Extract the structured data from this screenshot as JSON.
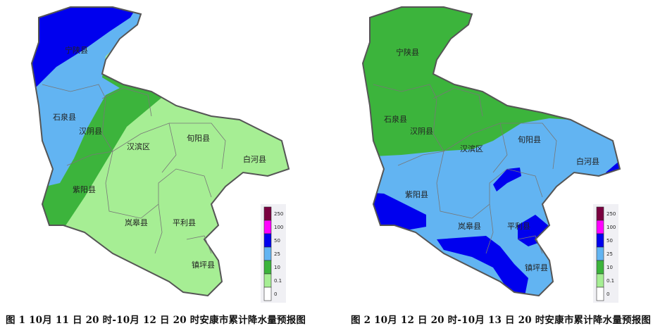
{
  "colors": {
    "0": "#ffffff",
    "0.1": "#a6ee94",
    "10": "#3cb43c",
    "25": "#62b4f2",
    "50": "#0000ee",
    "100": "#ff00ff",
    "250": "#7a0040"
  },
  "legend": {
    "labels": [
      "250",
      "100",
      "50",
      "25",
      "10",
      "0.1",
      "0"
    ]
  },
  "maps": [
    {
      "caption": "图 1 10月 11 日 20 时-10月 12 日 20 时安康市累计降水量预报图",
      "counties": [
        "宁陕县",
        "石泉县",
        "汉阴县",
        "汉滨区",
        "旬阳县",
        "白河县",
        "紫阳县",
        "岚皋县",
        "平利县",
        "镇坪县"
      ]
    },
    {
      "caption": "图 2 10月 12 日 20 时-10月 13 日 20 时安康市累计降水量预报图",
      "counties": [
        "宁陕县",
        "石泉县",
        "汉阴县",
        "汉滨区",
        "旬阳县",
        "白河县",
        "紫阳县",
        "岚皋县",
        "平利县",
        "镇坪县"
      ]
    }
  ]
}
